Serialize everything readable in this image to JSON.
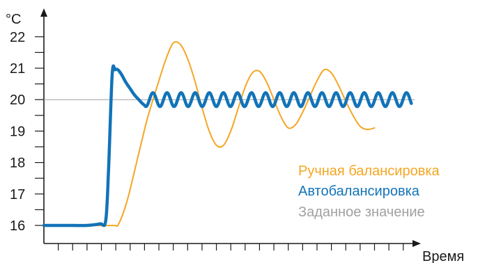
{
  "chart_data": {
    "type": "line",
    "ylabel": "°C",
    "xlabel": "Время",
    "ylim": [
      15.6,
      22.9
    ],
    "yticks": [
      "16",
      "17",
      "18",
      "19",
      "20",
      "21",
      "22"
    ],
    "xlim": [
      0,
      27
    ],
    "grid": false,
    "legend_position": "bottom-right",
    "setpoint": {
      "name": "Заданное значение",
      "value": 20,
      "color": "#a0a0a0"
    },
    "series": [
      {
        "name": "Ручная балансировка",
        "color": "#f5a623",
        "x": [
          3,
          4.8,
          5.2,
          5.8,
          6.5,
          7.2,
          8.0,
          8.5,
          9.0,
          9.5,
          10.0,
          10.5,
          11.0,
          11.5,
          12.0,
          12.5,
          13.0,
          13.5,
          14.0,
          14.5,
          15.0,
          15.5,
          16.0,
          16.5,
          17.0,
          17.5,
          18.0,
          18.5,
          19.0,
          19.5,
          20.0,
          20.5,
          21.0,
          21.5,
          22.0,
          22.5,
          23.0
        ],
        "y": [
          16.0,
          16.0,
          16.05,
          16.8,
          18.1,
          19.4,
          20.6,
          21.3,
          21.8,
          21.75,
          21.3,
          20.6,
          19.75,
          19.0,
          18.55,
          18.55,
          19.0,
          19.7,
          20.4,
          20.85,
          20.9,
          20.55,
          20.0,
          19.45,
          19.1,
          19.2,
          19.6,
          20.1,
          20.6,
          20.95,
          20.85,
          20.45,
          19.95,
          19.5,
          19.15,
          19.05,
          19.1
        ]
      },
      {
        "name": "Автобалансировка",
        "color": "#1273b8",
        "x": [
          0,
          1.0,
          2.0,
          3.0,
          3.9,
          4.3,
          4.5,
          4.75,
          4.95,
          5.15,
          5.4,
          5.7,
          6.0,
          6.3,
          6.6,
          6.8,
          7.0
        ],
        "y": [
          16.0,
          16.0,
          16.0,
          16.0,
          16.05,
          16.15,
          17.8,
          20.8,
          20.95,
          20.95,
          20.8,
          20.55,
          20.35,
          20.15,
          20.0,
          19.9,
          19.82
        ],
        "oscillation": {
          "center": 20,
          "amplitude": 0.22,
          "period": 0.98,
          "start_x": 6.9,
          "end_x": 25.6
        }
      }
    ]
  }
}
